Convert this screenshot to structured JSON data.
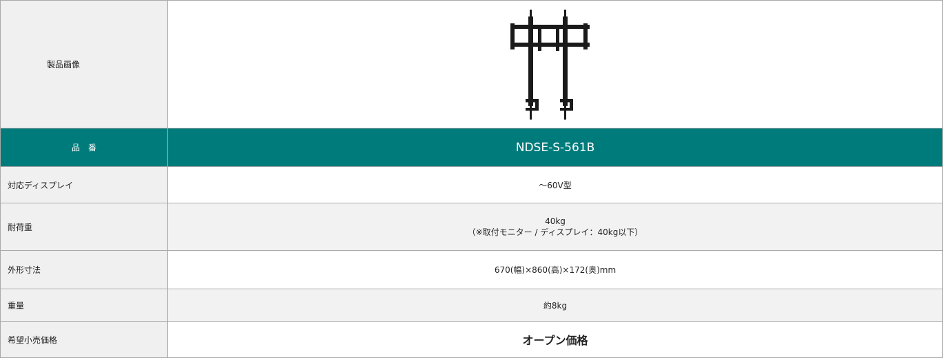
{
  "table": {
    "rows": [
      {
        "label": "製品画像"
      },
      {
        "label": "品　番",
        "value": "NDSE-S-561B"
      },
      {
        "label": "対応ディスプレイ",
        "value": "～60V型"
      },
      {
        "label": "耐荷重",
        "value": [
          "40kg",
          "（※取付モニター / ディスプレイ：40kg以下）"
        ]
      },
      {
        "label": "外形寸法",
        "value": "670(幅)×860(高)×172(奥)mm"
      },
      {
        "label": "重量",
        "value": "約8kg"
      },
      {
        "label": "希望小売価格",
        "value": "オープン価格"
      }
    ]
  }
}
